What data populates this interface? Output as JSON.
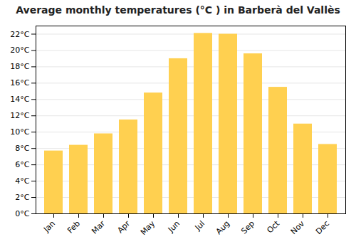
{
  "chart_data": {
    "type": "bar",
    "title": "Average monthly temperatures (°C ) in Barberà del Vallès",
    "categories": [
      "Jan",
      "Feb",
      "Mar",
      "Apr",
      "May",
      "Jun",
      "Jul",
      "Aug",
      "Sep",
      "Oct",
      "Nov",
      "Dec"
    ],
    "values": [
      7.7,
      8.4,
      9.8,
      11.5,
      14.8,
      19.0,
      22.1,
      22.0,
      19.6,
      15.5,
      11.0,
      8.5
    ],
    "color": "#FFD050",
    "ylim": [
      0,
      23
    ],
    "yticks": [
      {
        "value": 0,
        "label": "0°C"
      },
      {
        "value": 2,
        "label": "2°C"
      },
      {
        "value": 4,
        "label": "4°C"
      },
      {
        "value": 6,
        "label": "6°C"
      },
      {
        "value": 8,
        "label": "8°C"
      },
      {
        "value": 10,
        "label": "10°C"
      },
      {
        "value": 12,
        "label": "12°C"
      },
      {
        "value": 14,
        "label": "14°C"
      },
      {
        "value": 16,
        "label": "16°C"
      },
      {
        "value": 18,
        "label": "18°C"
      },
      {
        "value": 20,
        "label": "20°C"
      },
      {
        "value": 22,
        "label": "22°C"
      }
    ],
    "grid": true
  }
}
